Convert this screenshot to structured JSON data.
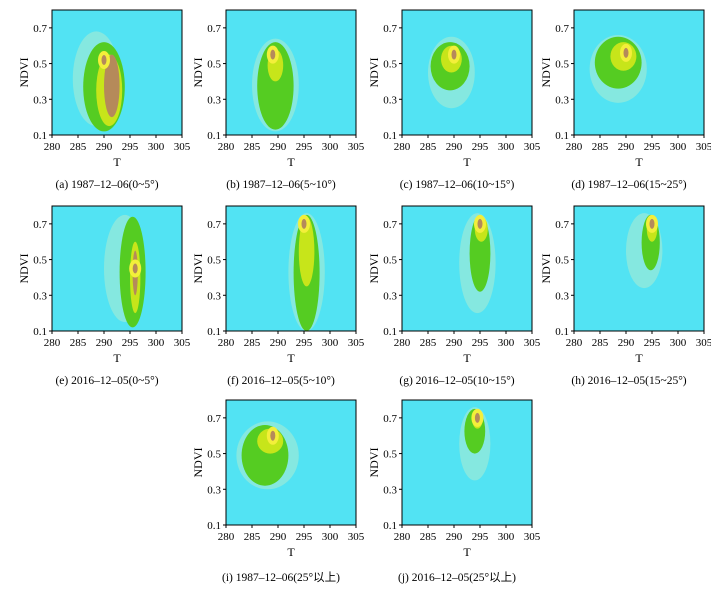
{
  "figure": {
    "axes": {
      "xlabel": "T",
      "ylabel": "NDVI",
      "x_ticks": [
        "280",
        "285",
        "290",
        "295",
        "300",
        "305"
      ],
      "y_ticks": [
        "0.1",
        "0.3",
        "0.5",
        "0.7"
      ]
    },
    "colors": {
      "background": "#52e3f3",
      "low_density": "#8ee9dc",
      "mid_density": "#55cc22",
      "high_density": "#c7e51a",
      "peak_density": "#f3ef3a",
      "core": "#b58a5a"
    }
  },
  "chart_data": [
    {
      "id": "a",
      "type": "heatmap",
      "caption": "(a) 1987–12–06(0~5°)",
      "xlim": [
        280,
        305
      ],
      "ylim": [
        0.1,
        0.8
      ],
      "blobs": [
        {
          "level": "low",
          "x": [
            284,
            293
          ],
          "y": [
            0.15,
            0.68
          ]
        },
        {
          "level": "mid",
          "x": [
            286,
            294
          ],
          "y": [
            0.12,
            0.62
          ]
        },
        {
          "level": "high",
          "x": [
            288.5,
            293.5
          ],
          "y": [
            0.15,
            0.55
          ]
        },
        {
          "level": "core",
          "x": [
            290,
            293
          ],
          "y": [
            0.2,
            0.55
          ]
        }
      ],
      "peak": {
        "x": 290,
        "y": 0.52
      }
    },
    {
      "id": "b",
      "type": "heatmap",
      "caption": "(b) 1987–12–06(5~10°)",
      "xlim": [
        280,
        305
      ],
      "ylim": [
        0.1,
        0.8
      ],
      "blobs": [
        {
          "level": "low",
          "x": [
            285,
            294
          ],
          "y": [
            0.12,
            0.64
          ]
        },
        {
          "level": "mid",
          "x": [
            286,
            293
          ],
          "y": [
            0.13,
            0.62
          ]
        },
        {
          "level": "high",
          "x": [
            288,
            291
          ],
          "y": [
            0.4,
            0.58
          ]
        }
      ],
      "peak": {
        "x": 289,
        "y": 0.55
      }
    },
    {
      "id": "c",
      "type": "heatmap",
      "caption": "(c) 1987–12–06(10~15°)",
      "xlim": [
        280,
        305
      ],
      "ylim": [
        0.1,
        0.8
      ],
      "blobs": [
        {
          "level": "low",
          "x": [
            285,
            294
          ],
          "y": [
            0.25,
            0.65
          ]
        },
        {
          "level": "mid",
          "x": [
            285.5,
            293
          ],
          "y": [
            0.35,
            0.62
          ]
        },
        {
          "level": "high",
          "x": [
            287.5,
            291.5
          ],
          "y": [
            0.45,
            0.6
          ]
        }
      ],
      "peak": {
        "x": 290,
        "y": 0.55
      }
    },
    {
      "id": "d",
      "type": "heatmap",
      "caption": "(d) 1987–12–06(15~25°)",
      "xlim": [
        280,
        305
      ],
      "ylim": [
        0.1,
        0.8
      ],
      "blobs": [
        {
          "level": "low",
          "x": [
            283,
            294
          ],
          "y": [
            0.28,
            0.66
          ]
        },
        {
          "level": "mid",
          "x": [
            284,
            293
          ],
          "y": [
            0.36,
            0.65
          ]
        },
        {
          "level": "high",
          "x": [
            287,
            292
          ],
          "y": [
            0.46,
            0.62
          ]
        }
      ],
      "peak": {
        "x": 290,
        "y": 0.56
      }
    },
    {
      "id": "e",
      "type": "heatmap",
      "caption": "(e) 2016–12–05(0~5°)",
      "xlim": [
        280,
        305
      ],
      "ylim": [
        0.1,
        0.8
      ],
      "blobs": [
        {
          "level": "low",
          "x": [
            290,
            298
          ],
          "y": [
            0.15,
            0.75
          ]
        },
        {
          "level": "mid",
          "x": [
            293,
            298
          ],
          "y": [
            0.12,
            0.74
          ]
        },
        {
          "level": "high",
          "x": [
            295,
            297
          ],
          "y": [
            0.2,
            0.6
          ]
        },
        {
          "level": "core",
          "x": [
            295.5,
            296.5
          ],
          "y": [
            0.3,
            0.55
          ]
        }
      ],
      "peak": {
        "x": 296,
        "y": 0.45
      }
    },
    {
      "id": "f",
      "type": "heatmap",
      "caption": "(f) 2016–12–05(5~10°)",
      "xlim": [
        280,
        305
      ],
      "ylim": [
        0.1,
        0.8
      ],
      "blobs": [
        {
          "level": "low",
          "x": [
            292,
            299
          ],
          "y": [
            0.1,
            0.76
          ]
        },
        {
          "level": "mid",
          "x": [
            293,
            298
          ],
          "y": [
            0.1,
            0.75
          ]
        },
        {
          "level": "high",
          "x": [
            294,
            297
          ],
          "y": [
            0.35,
            0.74
          ]
        }
      ],
      "peak": {
        "x": 295,
        "y": 0.7
      }
    },
    {
      "id": "g",
      "type": "heatmap",
      "caption": "(g) 2016–12–05(10~15°)",
      "xlim": [
        280,
        305
      ],
      "ylim": [
        0.1,
        0.8
      ],
      "blobs": [
        {
          "level": "low",
          "x": [
            291,
            298
          ],
          "y": [
            0.2,
            0.76
          ]
        },
        {
          "level": "mid",
          "x": [
            293,
            297
          ],
          "y": [
            0.32,
            0.75
          ]
        },
        {
          "level": "high",
          "x": [
            294,
            296.5
          ],
          "y": [
            0.6,
            0.74
          ]
        }
      ],
      "peak": {
        "x": 295,
        "y": 0.7
      }
    },
    {
      "id": "h",
      "type": "heatmap",
      "caption": "(h) 2016–12–05(15~25°)",
      "xlim": [
        280,
        305
      ],
      "ylim": [
        0.1,
        0.8
      ],
      "blobs": [
        {
          "level": "low",
          "x": [
            290,
            297
          ],
          "y": [
            0.34,
            0.76
          ]
        },
        {
          "level": "mid",
          "x": [
            293,
            296.5
          ],
          "y": [
            0.44,
            0.75
          ]
        },
        {
          "level": "high",
          "x": [
            294,
            296
          ],
          "y": [
            0.6,
            0.74
          ]
        }
      ],
      "peak": {
        "x": 295,
        "y": 0.7
      }
    },
    {
      "id": "i",
      "type": "heatmap",
      "caption": "(i) 1987–12–06(25°以上)",
      "xlim": [
        280,
        305
      ],
      "ylim": [
        0.1,
        0.8
      ],
      "blobs": [
        {
          "level": "low",
          "x": [
            282,
            294
          ],
          "y": [
            0.3,
            0.68
          ]
        },
        {
          "level": "mid",
          "x": [
            283,
            292
          ],
          "y": [
            0.32,
            0.66
          ]
        },
        {
          "level": "high",
          "x": [
            286,
            291
          ],
          "y": [
            0.5,
            0.64
          ]
        }
      ],
      "peak": {
        "x": 289,
        "y": 0.6
      }
    },
    {
      "id": "j",
      "type": "heatmap",
      "caption": "(j) 2016–12–05(25°以上)",
      "xlim": [
        280,
        305
      ],
      "ylim": [
        0.1,
        0.8
      ],
      "blobs": [
        {
          "level": "low",
          "x": [
            291,
            297
          ],
          "y": [
            0.35,
            0.76
          ]
        },
        {
          "level": "mid",
          "x": [
            292,
            296
          ],
          "y": [
            0.5,
            0.75
          ]
        },
        {
          "level": "high",
          "x": [
            293.5,
            295.5
          ],
          "y": [
            0.64,
            0.74
          ]
        }
      ],
      "peak": {
        "x": 294.5,
        "y": 0.7
      }
    }
  ]
}
